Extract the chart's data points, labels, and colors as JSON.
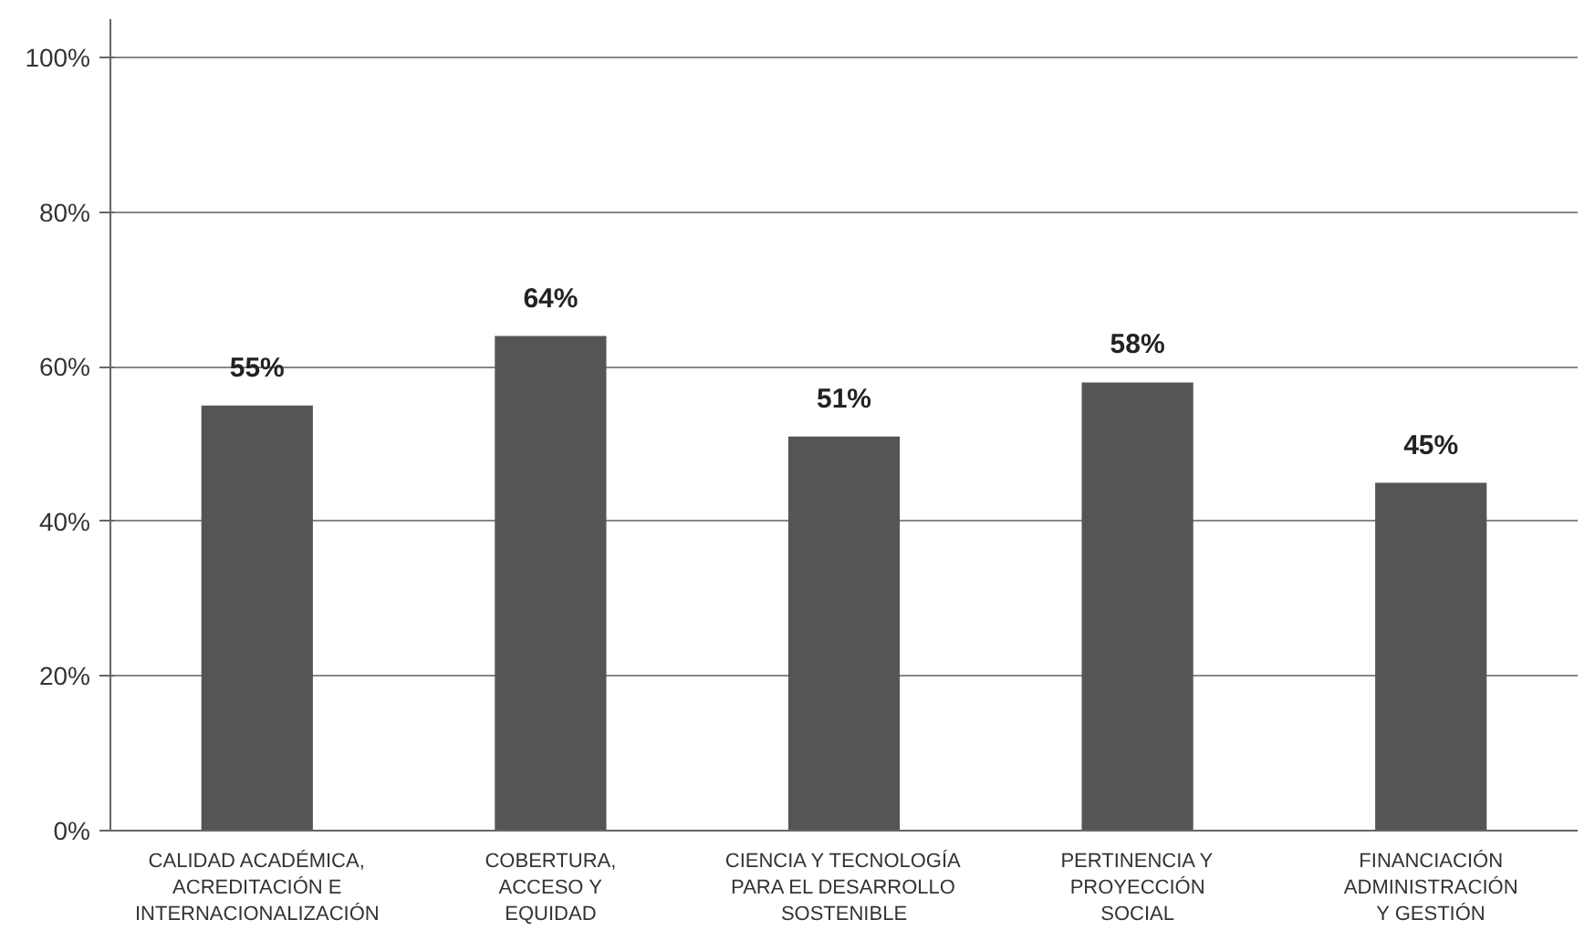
{
  "chart_data": {
    "type": "bar",
    "categories": [
      "CALIDAD ACADÉMICA,\nACREDITACIÓN E\nINTERNACIONALIZACIÓN",
      "COBERTURA,\nACCESO Y\nEQUIDAD",
      "CIENCIA Y TECNOLOGÍA\nPARA EL DESARROLLO\nSOSTENIBLE",
      "PERTINENCIA Y\nPROYECCIÓN\nSOCIAL",
      "FINANCIACIÓN\nADMINISTRACIÓN\nY GESTIÓN"
    ],
    "values": [
      55,
      64,
      51,
      58,
      45
    ],
    "value_labels": [
      "55%",
      "64%",
      "51%",
      "58%",
      "45%"
    ],
    "color": "#555555",
    "ylim": [
      0,
      105
    ],
    "yticks": [
      {
        "value": 0,
        "label": "0%"
      },
      {
        "value": 20,
        "label": "20%"
      },
      {
        "value": 40,
        "label": "40%"
      },
      {
        "value": 60,
        "label": "60%"
      },
      {
        "value": 80,
        "label": "80%"
      },
      {
        "value": 100,
        "label": "100%"
      }
    ],
    "grid": "y"
  }
}
